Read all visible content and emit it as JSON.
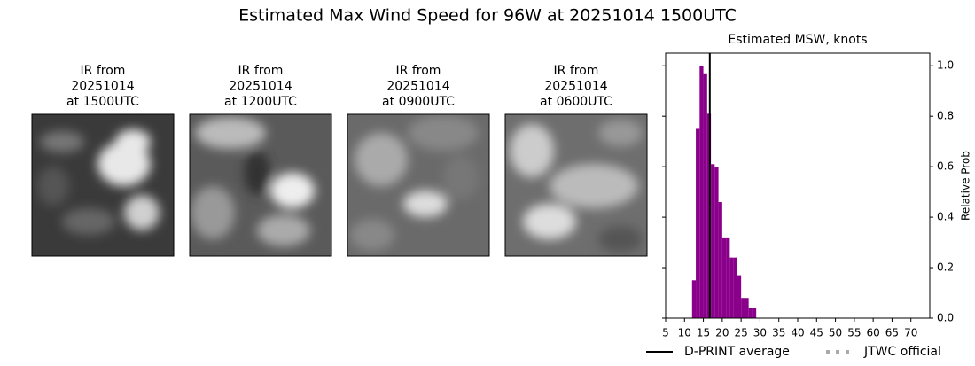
{
  "title": "Estimated Max Wind Speed for 96W at 20251014 1500UTC",
  "panels": [
    {
      "lines": [
        "IR from",
        "20251014",
        "at 1500UTC"
      ]
    },
    {
      "lines": [
        "IR from",
        "20251014",
        "at 1200UTC"
      ]
    },
    {
      "lines": [
        "IR from",
        "20251014",
        "at 0900UTC"
      ]
    },
    {
      "lines": [
        "IR from",
        "20251014",
        "at 0600UTC"
      ]
    }
  ],
  "chart_data": {
    "type": "histogram",
    "title": "Estimated MSW, knots",
    "y_label": "Relative Prob",
    "color": "#8b008b",
    "bins": [
      12,
      13,
      14,
      15,
      16,
      17,
      18,
      19,
      20,
      21,
      22,
      23,
      24,
      25,
      26,
      27,
      28,
      29
    ],
    "values": [
      0.15,
      0.75,
      1.0,
      0.97,
      0.81,
      0.61,
      0.6,
      0.46,
      0.32,
      0.32,
      0.24,
      0.24,
      0.17,
      0.08,
      0.08,
      0.04,
      0.04
    ],
    "xlim": [
      5,
      75
    ],
    "ylim": [
      0,
      1.05
    ],
    "xticks": [
      5,
      10,
      15,
      20,
      25,
      30,
      35,
      40,
      45,
      50,
      55,
      60,
      65,
      70
    ],
    "yticks": [
      {
        "value": 0,
        "label": "0.0"
      },
      0.2,
      0.4,
      0.6,
      0.8,
      {
        "value": 1,
        "label": "1.0"
      }
    ],
    "reference_lines": [
      {
        "name": "D-PRINT average",
        "value": 16.7,
        "color": "#000000",
        "style": "solid"
      },
      {
        "name": "JTWC official",
        "color": "#aaaaaa",
        "style": "dotted"
      }
    ]
  }
}
